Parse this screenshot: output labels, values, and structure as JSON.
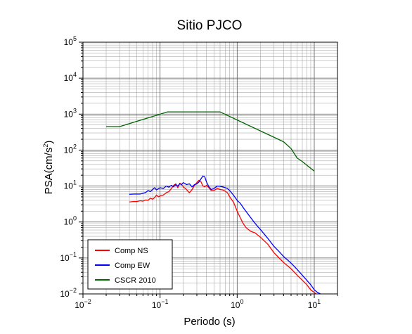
{
  "chart_data": {
    "type": "line",
    "title": "Sitio PJCO",
    "xlabel": "Periodo (s)",
    "ylabel_base": "PSA(cm/s",
    "ylabel_sup": "2",
    "ylabel_close": ")",
    "x_scale": "log",
    "y_scale": "log",
    "xlim": [
      0.01,
      20
    ],
    "ylim": [
      0.01,
      100000
    ],
    "x_ticks": [
      {
        "base": "10",
        "exp": "−2",
        "value": 0.01
      },
      {
        "base": "10",
        "exp": "−1",
        "value": 0.1
      },
      {
        "base": "10",
        "exp": "0",
        "value": 1
      },
      {
        "base": "10",
        "exp": "1",
        "value": 10
      }
    ],
    "y_ticks": [
      {
        "base": "10",
        "exp": "−2",
        "value": 0.01
      },
      {
        "base": "10",
        "exp": "−1",
        "value": 0.1
      },
      {
        "base": "10",
        "exp": "0",
        "value": 1
      },
      {
        "base": "10",
        "exp": "1",
        "value": 10
      },
      {
        "base": "10",
        "exp": "2",
        "value": 100
      },
      {
        "base": "10",
        "exp": "3",
        "value": 1000
      },
      {
        "base": "10",
        "exp": "4",
        "value": 10000
      },
      {
        "base": "10",
        "exp": "5",
        "value": 100000
      }
    ],
    "grid": true,
    "legend_position": "bottom-left",
    "series": [
      {
        "name": "Comp NS",
        "color": "#ff0000",
        "points": [
          [
            0.04,
            3.6
          ],
          [
            0.045,
            3.7
          ],
          [
            0.05,
            3.7
          ],
          [
            0.055,
            3.9
          ],
          [
            0.06,
            3.8
          ],
          [
            0.065,
            4.1
          ],
          [
            0.07,
            4.0
          ],
          [
            0.075,
            4.6
          ],
          [
            0.08,
            4.3
          ],
          [
            0.085,
            4.8
          ],
          [
            0.09,
            5.6
          ],
          [
            0.095,
            5.0
          ],
          [
            0.1,
            5.3
          ],
          [
            0.11,
            5.6
          ],
          [
            0.12,
            6.5
          ],
          [
            0.13,
            7.0
          ],
          [
            0.14,
            8.5
          ],
          [
            0.15,
            10.5
          ],
          [
            0.16,
            11.5
          ],
          [
            0.17,
            9.0
          ],
          [
            0.18,
            12.0
          ],
          [
            0.19,
            11.0
          ],
          [
            0.2,
            9.5
          ],
          [
            0.22,
            8.0
          ],
          [
            0.24,
            6.5
          ],
          [
            0.26,
            8.0
          ],
          [
            0.28,
            10.5
          ],
          [
            0.3,
            12.5
          ],
          [
            0.32,
            14.5
          ],
          [
            0.34,
            13.0
          ],
          [
            0.36,
            10.0
          ],
          [
            0.38,
            9.5
          ],
          [
            0.4,
            10.5
          ],
          [
            0.43,
            9.0
          ],
          [
            0.46,
            7.5
          ],
          [
            0.5,
            7.5
          ],
          [
            0.55,
            8.5
          ],
          [
            0.6,
            8.0
          ],
          [
            0.65,
            7.8
          ],
          [
            0.7,
            7.2
          ],
          [
            0.75,
            6.5
          ],
          [
            0.8,
            5.0
          ],
          [
            0.9,
            3.5
          ],
          [
            1.0,
            2.0
          ],
          [
            1.1,
            1.3
          ],
          [
            1.2,
            0.9
          ],
          [
            1.3,
            0.7
          ],
          [
            1.5,
            0.55
          ],
          [
            1.7,
            0.5
          ],
          [
            2.0,
            0.38
          ],
          [
            2.5,
            0.24
          ],
          [
            3.0,
            0.14
          ],
          [
            3.5,
            0.1
          ],
          [
            4.0,
            0.075
          ],
          [
            5.0,
            0.05
          ],
          [
            6.0,
            0.033
          ],
          [
            7.0,
            0.024
          ],
          [
            8.0,
            0.018
          ],
          [
            9.0,
            0.013
          ],
          [
            10.0,
            0.011
          ],
          [
            10.5,
            0.01
          ]
        ]
      },
      {
        "name": "Comp EW",
        "color": "#0000ff",
        "points": [
          [
            0.04,
            5.9
          ],
          [
            0.045,
            6.0
          ],
          [
            0.05,
            6.0
          ],
          [
            0.055,
            6.0
          ],
          [
            0.06,
            6.3
          ],
          [
            0.065,
            6.6
          ],
          [
            0.07,
            7.5
          ],
          [
            0.075,
            7.0
          ],
          [
            0.08,
            8.0
          ],
          [
            0.085,
            9.0
          ],
          [
            0.09,
            7.8
          ],
          [
            0.1,
            9.0
          ],
          [
            0.11,
            8.5
          ],
          [
            0.12,
            10.0
          ],
          [
            0.13,
            9.3
          ],
          [
            0.14,
            10.5
          ],
          [
            0.15,
            9.5
          ],
          [
            0.16,
            11.0
          ],
          [
            0.17,
            10.0
          ],
          [
            0.18,
            11.5
          ],
          [
            0.19,
            11.0
          ],
          [
            0.2,
            12.5
          ],
          [
            0.22,
            11.0
          ],
          [
            0.24,
            11.5
          ],
          [
            0.26,
            9.5
          ],
          [
            0.28,
            11.0
          ],
          [
            0.3,
            11.5
          ],
          [
            0.32,
            13.0
          ],
          [
            0.34,
            16.0
          ],
          [
            0.36,
            19.0
          ],
          [
            0.38,
            18.0
          ],
          [
            0.4,
            13.0
          ],
          [
            0.43,
            9.5
          ],
          [
            0.46,
            8.0
          ],
          [
            0.5,
            8.5
          ],
          [
            0.55,
            10.0
          ],
          [
            0.6,
            9.8
          ],
          [
            0.65,
            9.5
          ],
          [
            0.7,
            9.0
          ],
          [
            0.75,
            8.5
          ],
          [
            0.8,
            7.5
          ],
          [
            0.9,
            5.5
          ],
          [
            1.0,
            4.0
          ],
          [
            1.1,
            3.3
          ],
          [
            1.2,
            2.5
          ],
          [
            1.4,
            1.6
          ],
          [
            1.6,
            1.1
          ],
          [
            1.8,
            0.8
          ],
          [
            2.0,
            0.62
          ],
          [
            2.5,
            0.35
          ],
          [
            3.0,
            0.21
          ],
          [
            3.5,
            0.15
          ],
          [
            4.0,
            0.11
          ],
          [
            5.0,
            0.072
          ],
          [
            6.0,
            0.048
          ],
          [
            7.0,
            0.033
          ],
          [
            8.0,
            0.024
          ],
          [
            9.0,
            0.018
          ],
          [
            10.0,
            0.013
          ],
          [
            11.0,
            0.011
          ],
          [
            12.0,
            0.01
          ]
        ]
      },
      {
        "name": "CSCR 2010",
        "color": "#006400",
        "points": [
          [
            0.02,
            450
          ],
          [
            0.03,
            450
          ],
          [
            0.125,
            1150
          ],
          [
            0.6,
            1150
          ],
          [
            4.0,
            170
          ],
          [
            5.0,
            110
          ],
          [
            6.0,
            60
          ],
          [
            7.0,
            48
          ],
          [
            8.0,
            38
          ],
          [
            10.0,
            26
          ]
        ]
      }
    ]
  }
}
